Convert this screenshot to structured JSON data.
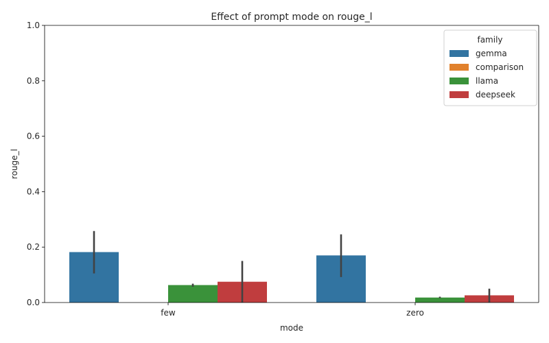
{
  "chart_data": {
    "type": "bar",
    "title": "Effect of prompt mode on rouge_l",
    "xlabel": "mode",
    "ylabel": "rouge_l",
    "ylim": [
      0,
      1.0
    ],
    "yticks": [
      "0.0",
      "0.2",
      "0.4",
      "0.6",
      "0.8",
      "1.0"
    ],
    "categories": [
      "few",
      "zero"
    ],
    "legend": {
      "title": "family",
      "position": "top-right"
    },
    "grid": false,
    "series": [
      {
        "name": "gemma",
        "color": "#3274a1",
        "values": [
          0.182,
          0.17
        ],
        "ci_low": [
          0.105,
          0.092
        ],
        "ci_high": [
          0.258,
          0.246
        ]
      },
      {
        "name": "comparison",
        "color": "#e1812c",
        "values": [
          0.0,
          0.0
        ],
        "ci_low": [
          0.0,
          0.0
        ],
        "ci_high": [
          0.0,
          0.0
        ]
      },
      {
        "name": "llama",
        "color": "#3a923a",
        "values": [
          0.063,
          0.018
        ],
        "ci_low": [
          0.057,
          0.016
        ],
        "ci_high": [
          0.068,
          0.021
        ]
      },
      {
        "name": "deepseek",
        "color": "#c03d3e",
        "values": [
          0.075,
          0.026
        ],
        "ci_low": [
          0.0,
          0.0
        ],
        "ci_high": [
          0.15,
          0.05
        ]
      }
    ]
  }
}
